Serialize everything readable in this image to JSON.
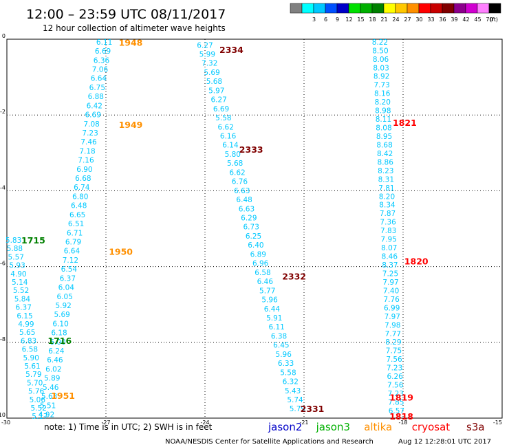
{
  "title": "12:00 – 23:59 UTC 08/11/2017",
  "subtitle": "12 hour collection of altimeter wave heights",
  "legend": {
    "unit": "(ft)",
    "bins": [
      {
        "label": "",
        "color": "#808080"
      },
      {
        "label": "3",
        "color": "#00ffff"
      },
      {
        "label": "6",
        "color": "#00c8ff"
      },
      {
        "label": "9",
        "color": "#0050ff"
      },
      {
        "label": "12",
        "color": "#0000c8"
      },
      {
        "label": "15",
        "color": "#00e000"
      },
      {
        "label": "18",
        "color": "#00b000"
      },
      {
        "label": "21",
        "color": "#008000"
      },
      {
        "label": "24",
        "color": "#ffff00"
      },
      {
        "label": "27",
        "color": "#ffc800"
      },
      {
        "label": "30",
        "color": "#ff9000"
      },
      {
        "label": "33",
        "color": "#ff0000"
      },
      {
        "label": "36",
        "color": "#c80000"
      },
      {
        "label": "39",
        "color": "#800000"
      },
      {
        "label": "42",
        "color": "#8c008c"
      },
      {
        "label": "45",
        "color": "#d000d0"
      },
      {
        "label": "70",
        "color": "#ff80ff"
      },
      {
        "label": "",
        "color": "#000000"
      }
    ]
  },
  "map": {
    "lon_range": [
      -30,
      -15
    ],
    "lat_range": [
      0,
      -10
    ],
    "x_ticks": [
      "-30",
      "-27",
      "-24",
      "-21",
      "-18",
      "-15"
    ],
    "y_ticks": [
      "0",
      "-2",
      "-4",
      "-6",
      "-8",
      "-10"
    ]
  },
  "tracks": [
    {
      "lon_start": -27.05,
      "lon_end": -28.8,
      "lat_start": -0.07,
      "lat_end": -9.9,
      "color": "#00c8ff",
      "values": [
        "6.11",
        "6.69",
        "6.36",
        "7.06",
        "6.64",
        "6.75",
        "6.88",
        "6.42",
        "6.69",
        "7.08",
        "7.23",
        "7.46",
        "7.18",
        "7.16",
        "6.90",
        "6.68",
        "6.74",
        "6.80",
        "6.48",
        "6.65",
        "6.51",
        "6.71",
        "6.79",
        "6.64",
        "7.12",
        "6.54",
        "6.37",
        "6.04",
        "6.05",
        "5.92",
        "5.69",
        "6.10",
        "6.18",
        "6.00",
        "6.24",
        "6.46",
        "6.02",
        "5.89",
        "5.46",
        "5.63",
        "5.51",
        "4.92"
      ]
    },
    {
      "lon_start": -29.8,
      "lon_end": -29.0,
      "lat_start": -5.3,
      "lat_end": -9.95,
      "color": "#00c8ff",
      "values": [
        "5.83",
        "5.88",
        "5.57",
        "5.93",
        "4.90",
        "5.14",
        "5.52",
        "5.84",
        "6.37",
        "6.15",
        "4.99",
        "5.65",
        "6.83",
        "6.58",
        "5.90",
        "5.61",
        "5.79",
        "5.70",
        "5.76",
        "5.06",
        "5.52",
        "5.17"
      ]
    },
    {
      "lon_start": -24.0,
      "lon_end": -21.2,
      "lat_start": -0.15,
      "lat_end": -9.75,
      "color": "#00c8ff",
      "values": [
        "6.27",
        "5.99",
        "7.32",
        "5.69",
        "5.68",
        "5.97",
        "6.27",
        "6.69",
        "5.58",
        "6.62",
        "6.16",
        "6.14",
        "5.80",
        "5.68",
        "6.62",
        "6.76",
        "6.63",
        "6.48",
        "6.63",
        "6.29",
        "6.73",
        "6.25",
        "6.40",
        "6.89",
        "6.96",
        "6.58",
        "6.46",
        "5.77",
        "5.96",
        "6.44",
        "5.91",
        "6.11",
        "6.38",
        "6.45",
        "5.96",
        "6.33",
        "5.58",
        "6.32",
        "5.43",
        "5.74",
        "5.79"
      ]
    },
    {
      "lon_start": -18.7,
      "lon_end": -18.2,
      "lat_start": -0.07,
      "lat_end": -9.8,
      "color": "#00c8ff",
      "values": [
        "8.22",
        "8.50",
        "8.06",
        "8.03",
        "8.92",
        "7.73",
        "8.16",
        "8.20",
        "8.98",
        "8.11",
        "8.08",
        "8.95",
        "8.68",
        "8.42",
        "8.86",
        "8.23",
        "8.31",
        "7.81",
        "8.20",
        "8.34",
        "7.87",
        "7.36",
        "7.83",
        "7.95",
        "8.07",
        "8.46",
        "8.37",
        "7.25",
        "7.97",
        "7.40",
        "7.76",
        "6.99",
        "7.97",
        "7.98",
        "7.77",
        "8.29",
        "7.75",
        "7.56",
        "7.23",
        "6.26",
        "7.56",
        "7.23",
        "7.85",
        "6.57"
      ]
    }
  ],
  "pass_labels": [
    {
      "text": "1948",
      "lon": -26.25,
      "lat": -0.08,
      "color": "#ff9000"
    },
    {
      "text": "1949",
      "lon": -26.25,
      "lat": -2.25,
      "color": "#ff9000"
    },
    {
      "text": "1950",
      "lon": -26.55,
      "lat": -5.6,
      "color": "#ff9000"
    },
    {
      "text": "1951",
      "lon": -28.3,
      "lat": -9.4,
      "color": "#ff9000"
    },
    {
      "text": "1715",
      "lon": -29.2,
      "lat": -5.3,
      "color": "#008000"
    },
    {
      "text": "1716",
      "lon": -28.4,
      "lat": -7.95,
      "color": "#008000"
    },
    {
      "text": "2334",
      "lon": -23.2,
      "lat": -0.27,
      "color": "#800000"
    },
    {
      "text": "2333",
      "lon": -22.6,
      "lat": -2.9,
      "color": "#800000"
    },
    {
      "text": "2332",
      "lon": -21.3,
      "lat": -6.25,
      "color": "#800000"
    },
    {
      "text": "2331",
      "lon": -20.75,
      "lat": -9.75,
      "color": "#800000"
    },
    {
      "text": "1821",
      "lon": -17.95,
      "lat": -2.2,
      "color": "#ff0000"
    },
    {
      "text": "1820",
      "lon": -17.6,
      "lat": -5.85,
      "color": "#ff0000"
    },
    {
      "text": "1819",
      "lon": -18.05,
      "lat": -9.45,
      "color": "#ff0000"
    },
    {
      "text": "1818",
      "lon": -18.05,
      "lat": -9.95,
      "color": "#ff0000"
    }
  ],
  "note": "note:  1) Time is in UTC;  2) SWH is in feet",
  "satellites": [
    {
      "name": "jason2",
      "color": "#0000c8"
    },
    {
      "name": "jason3",
      "color": "#00b000"
    },
    {
      "name": "altika",
      "color": "#ff9000"
    },
    {
      "name": "cryosat",
      "color": "#ff0000"
    },
    {
      "name": "s3a",
      "color": "#800000"
    }
  ],
  "footer": {
    "credit": "NOAA/NESDIS Center for Satellite Applications and Research",
    "timestamp": "Aug 12 12:28:01 UTC 2017"
  }
}
